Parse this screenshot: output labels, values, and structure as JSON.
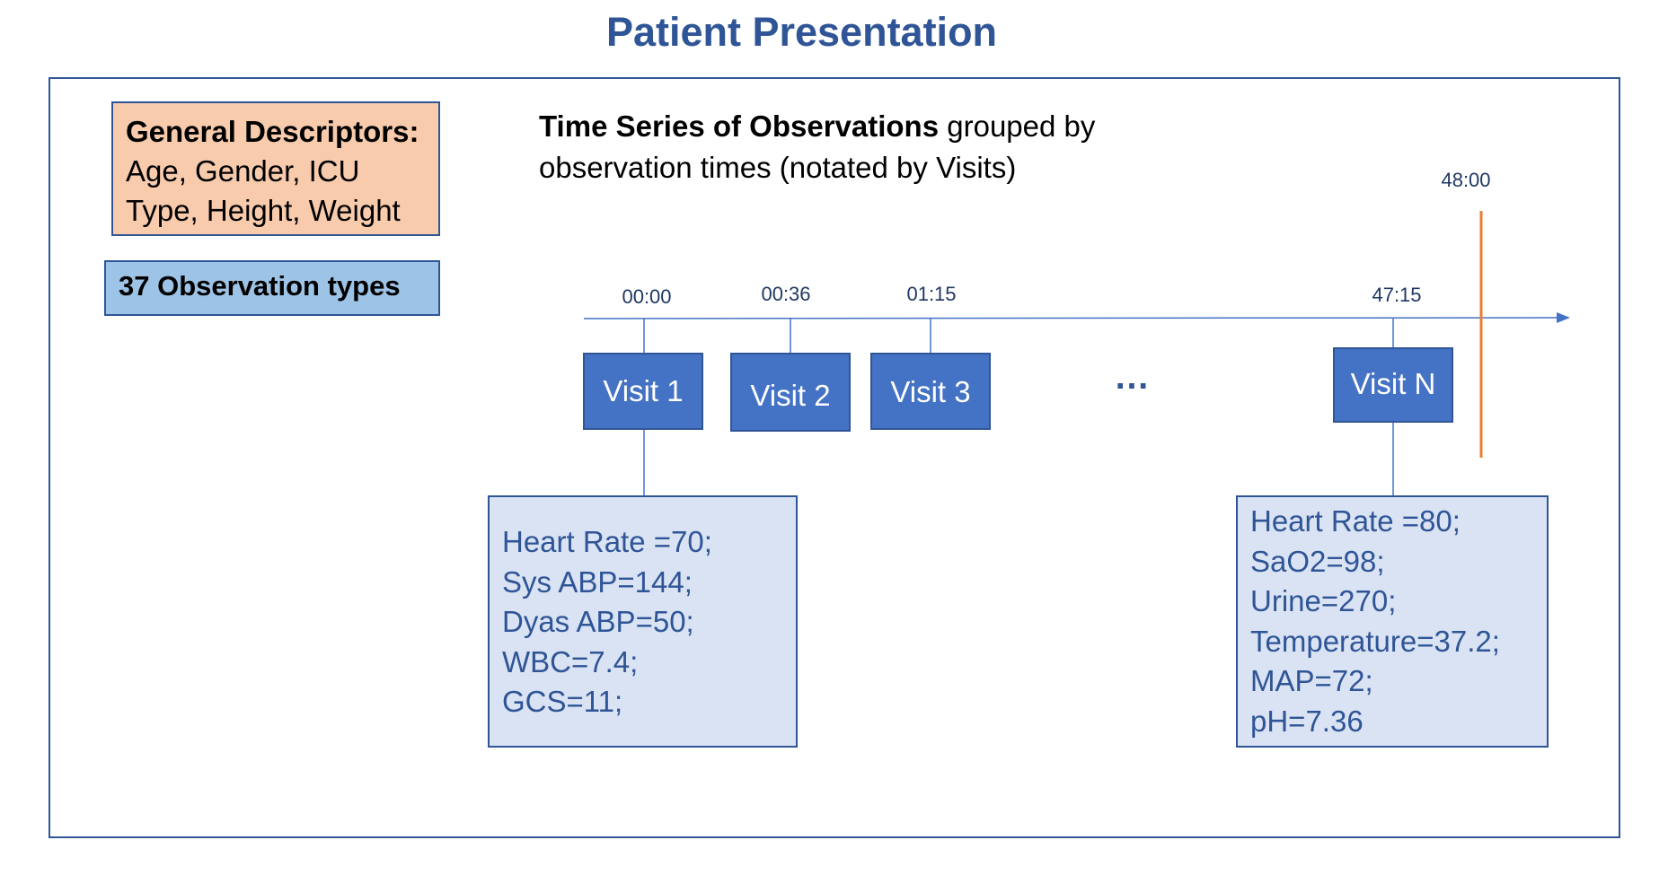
{
  "title": "Patient Presentation",
  "general_descriptors": {
    "label": "General Descriptors:",
    "lines": [
      "Age, Gender, ICU",
      "Type, Height, Weight"
    ]
  },
  "observation_types": "37 Observation types",
  "time_series": {
    "label": "Time Series of Observations",
    "rest": " grouped by",
    "line2": "observation times (notated by Visits)"
  },
  "end_time": "48:00",
  "ellipsis": "…",
  "visits": [
    {
      "label": "Visit 1",
      "time": "00:00"
    },
    {
      "label": "Visit 2",
      "time": "00:36"
    },
    {
      "label": "Visit 3",
      "time": "01:15"
    },
    {
      "label": "Visit N",
      "time": "47:15"
    }
  ],
  "visit_1_observations": [
    "Heart Rate =70;",
    "Sys ABP=144;",
    "Dyas ABP=50;",
    "WBC=7.4;",
    "GCS=11;"
  ],
  "visit_n_observations": [
    "Heart Rate =80;",
    "SaO2=98;",
    "Urine=270;",
    "Temperature=37.2;",
    "MAP=72;",
    "pH=7.36"
  ],
  "colors": {
    "title": "#2f5597",
    "visit_box": "#4472c4",
    "data_box": "#dae3f3",
    "descriptor_box": "#f8cbad",
    "observation_types_box": "#9dc3e6",
    "end_line": "#ed7d31"
  }
}
